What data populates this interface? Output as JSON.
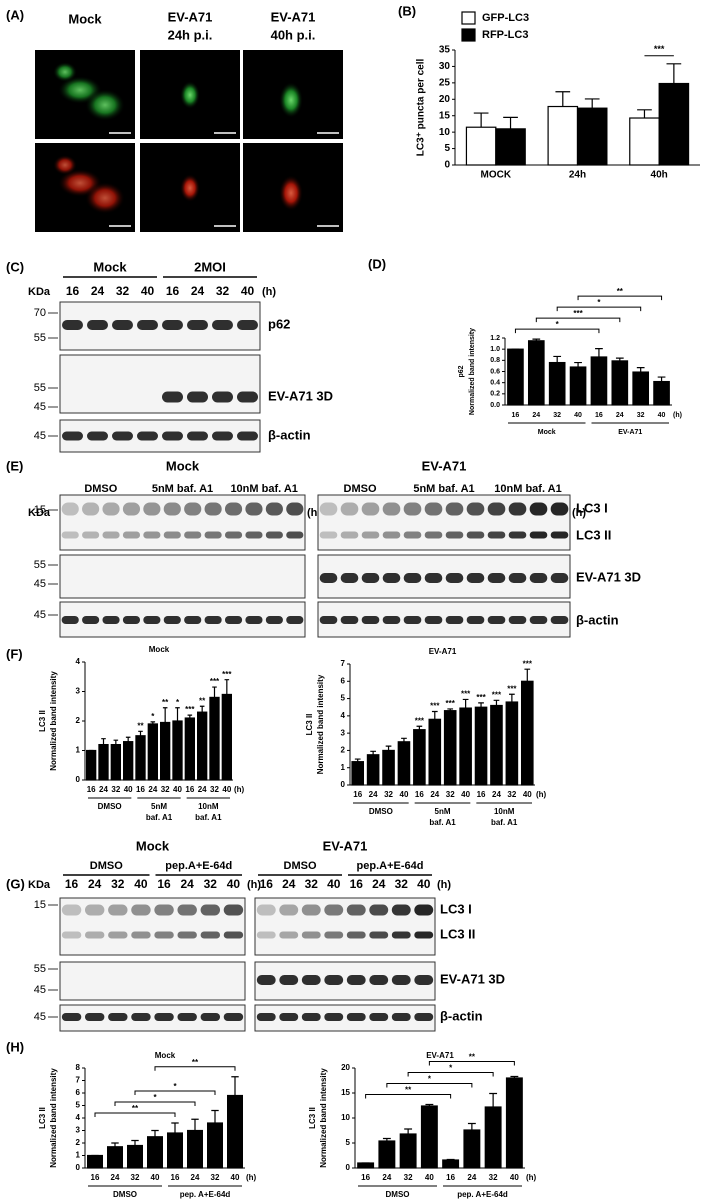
{
  "panel_a": {
    "label": "(A)",
    "columns": [
      [
        "Mock"
      ],
      [
        "EV-A71",
        "24h p.i."
      ],
      [
        "EV-A71",
        "40h p.i."
      ]
    ],
    "rows": [
      "GFP-LC3",
      "RFP-LC3"
    ],
    "scale_bar": "10μm"
  },
  "panel_c": {
    "label": "(C)",
    "unit": "KDa",
    "groups": [
      "Mock",
      "2MOI"
    ],
    "lanes": [
      "16",
      "24",
      "32",
      "40"
    ],
    "time_unit": "(h)",
    "blots": [
      {
        "markers": [
          "70",
          "55"
        ],
        "bands": [
          "p62"
        ]
      },
      {
        "markers": [
          "55",
          "45"
        ],
        "bands": [
          "EV-A71 3D"
        ]
      },
      {
        "markers": [
          "45"
        ],
        "bands": [
          "β-actin"
        ]
      }
    ]
  },
  "panel_e": {
    "label": "(E)",
    "unit": "KDa",
    "conditions": [
      "Mock",
      "EV-A71"
    ],
    "treatments": [
      "DMSO",
      "5nM baf. A1",
      "10nM baf. A1"
    ],
    "lanes": [
      "16",
      "24",
      "32",
      "40"
    ],
    "time_unit": "(h)",
    "blots": [
      {
        "markers": [
          "15"
        ],
        "bands": [
          "LC3 I",
          "LC3 II"
        ]
      },
      {
        "markers": [
          "55",
          "45"
        ],
        "bands": [
          "EV-A71 3D"
        ]
      },
      {
        "markers": [
          "45"
        ],
        "bands": [
          "β-actin"
        ]
      }
    ]
  },
  "panel_g": {
    "label": "(G)",
    "unit": "KDa",
    "conditions": [
      "Mock",
      "EV-A71"
    ],
    "treatments": [
      "DMSO",
      "pep.A+E-64d"
    ],
    "lanes": [
      "16",
      "24",
      "32",
      "40"
    ],
    "time_unit": "(h)",
    "blots": [
      {
        "markers": [
          "15"
        ],
        "bands": [
          "LC3 I",
          "LC3 II"
        ]
      },
      {
        "markers": [
          "55",
          "45"
        ],
        "bands": [
          "EV-A71 3D"
        ]
      },
      {
        "markers": [
          "45"
        ],
        "bands": [
          "β-actin"
        ]
      }
    ]
  },
  "chart_data": [
    {
      "type": "bar",
      "panel": "(B)",
      "ylabel": [
        "LC3⁺ puncta per cell"
      ],
      "categories": [
        "MOCK",
        "24h",
        "40h"
      ],
      "series": [
        {
          "name": "GFP-LC3",
          "color": "#ffffff",
          "values": [
            11.5,
            17.8,
            14.3
          ],
          "errors": [
            4.3,
            4.5,
            2.5
          ]
        },
        {
          "name": "RFP-LC3",
          "color": "#000000",
          "values": [
            11,
            17.3,
            24.8
          ],
          "errors": [
            3.5,
            2.8,
            6
          ]
        }
      ],
      "ylim": [
        0,
        35
      ],
      "yticks": [
        0,
        5,
        10,
        15,
        20,
        25,
        30,
        35
      ],
      "annotations": [
        "***"
      ]
    },
    {
      "type": "bar",
      "panel": "(D)",
      "ylabel": [
        "p62",
        "Normalized band intensity"
      ],
      "categories": [
        "16",
        "24",
        "32",
        "40",
        "16",
        "24",
        "32",
        "40"
      ],
      "x_unit": "(h)",
      "groups": [
        [
          "Mock"
        ],
        [
          "EV-A71"
        ]
      ],
      "color": "#000000",
      "values": [
        1.0,
        1.15,
        0.76,
        0.68,
        0.86,
        0.79,
        0.59,
        0.42
      ],
      "errors": [
        0,
        0.03,
        0.11,
        0.08,
        0.15,
        0.05,
        0.08,
        0.08
      ],
      "ylim": [
        0,
        1.2
      ],
      "yticks": [
        {
          "value": 0,
          "label": "0.0"
        },
        {
          "value": 0.2,
          "label": "0.2"
        },
        {
          "value": 0.4,
          "label": "0.4"
        },
        {
          "value": 0.6,
          "label": "0.6"
        },
        {
          "value": 0.8,
          "label": "0.8"
        },
        {
          "value": 1,
          "label": "1.0"
        },
        {
          "value": 1.2,
          "label": "1.2"
        }
      ],
      "brackets": [
        "*",
        "***",
        "*",
        "**"
      ]
    },
    {
      "type": "bar",
      "panel": "(F)",
      "title": "Mock",
      "ylabel": [
        "LC3 II",
        "Normalized band intensity"
      ],
      "categories": [
        "16",
        "24",
        "32",
        "40",
        "16",
        "24",
        "32",
        "40",
        "16",
        "24",
        "32",
        "40"
      ],
      "x_unit": "(h)",
      "groups": [
        [
          "DMSO"
        ],
        [
          "5nM",
          "baf. A1"
        ],
        [
          "10nM",
          "baf. A1"
        ]
      ],
      "color": "#000000",
      "values": [
        1.0,
        1.2,
        1.2,
        1.3,
        1.5,
        1.9,
        1.95,
        2.0,
        2.1,
        2.3,
        2.8,
        2.9
      ],
      "errors": [
        0,
        0.2,
        0.15,
        0.15,
        0.15,
        0.07,
        0.5,
        0.45,
        0.1,
        0.2,
        0.35,
        0.5
      ],
      "bar_labels": [
        null,
        null,
        null,
        null,
        "**",
        "*",
        "**",
        "*",
        "***",
        "**",
        "***",
        "***"
      ],
      "ylim": [
        0,
        4
      ],
      "yticks": [
        0,
        1,
        2,
        3,
        4
      ]
    },
    {
      "type": "bar",
      "title": "EV-A71",
      "ylabel": [
        "LC3 II",
        "Normalized band intensity"
      ],
      "categories": [
        "16",
        "24",
        "32",
        "40",
        "16",
        "24",
        "32",
        "40",
        "16",
        "24",
        "32",
        "40"
      ],
      "x_unit": "(h)",
      "groups": [
        [
          "DMSO"
        ],
        [
          "5nM",
          "baf. A1"
        ],
        [
          "10nM",
          "baf. A1"
        ]
      ],
      "color": "#000000",
      "values": [
        1.35,
        1.75,
        2.0,
        2.5,
        3.2,
        3.8,
        4.3,
        4.45,
        4.5,
        4.6,
        4.8,
        6.0
      ],
      "errors": [
        0.15,
        0.2,
        0.25,
        0.2,
        0.2,
        0.45,
        0.1,
        0.5,
        0.25,
        0.3,
        0.45,
        0.7
      ],
      "bar_labels": [
        null,
        null,
        null,
        null,
        "***",
        "***",
        "***",
        "***",
        "***",
        "***",
        "***",
        "***"
      ],
      "ylim": [
        0,
        7
      ],
      "yticks": [
        0,
        1,
        2,
        3,
        4,
        5,
        6,
        7
      ]
    },
    {
      "type": "bar",
      "panel": "(H)",
      "title": "Mock",
      "ylabel": [
        "LC3 II",
        "Normalized band intensity"
      ],
      "categories": [
        "16",
        "24",
        "32",
        "40",
        "16",
        "24",
        "32",
        "40"
      ],
      "x_unit": "(h)",
      "groups": [
        [
          "DMSO"
        ],
        [
          "pep. A+E-64d"
        ]
      ],
      "color": "#000000",
      "values": [
        1.0,
        1.7,
        1.8,
        2.5,
        2.8,
        3.0,
        3.6,
        5.8
      ],
      "errors": [
        0,
        0.3,
        0.4,
        0.5,
        0.8,
        0.9,
        1.0,
        1.5
      ],
      "brackets": [
        "**",
        "*",
        "*",
        "**"
      ],
      "ylim": [
        0,
        8
      ],
      "yticks": [
        0,
        1,
        2,
        3,
        4,
        5,
        6,
        7,
        8
      ]
    },
    {
      "type": "bar",
      "title": "EV-A71",
      "ylabel": [
        "LC3 II",
        "Normalized band intensity"
      ],
      "categories": [
        "16",
        "24",
        "32",
        "40",
        "16",
        "24",
        "32",
        "40"
      ],
      "x_unit": "(h)",
      "groups": [
        [
          "DMSO"
        ],
        [
          "pep. A+E-64d"
        ]
      ],
      "color": "#000000",
      "values": [
        1.0,
        5.4,
        6.8,
        12.4,
        1.6,
        7.6,
        12.2,
        18.0
      ],
      "errors": [
        0,
        0.5,
        1.0,
        0.3,
        0.1,
        1.3,
        2.7,
        0.3
      ],
      "brackets": [
        "**",
        "*",
        "*",
        "**"
      ],
      "ylim": [
        0,
        20
      ],
      "yticks": [
        0,
        5,
        10,
        15,
        20
      ]
    }
  ]
}
